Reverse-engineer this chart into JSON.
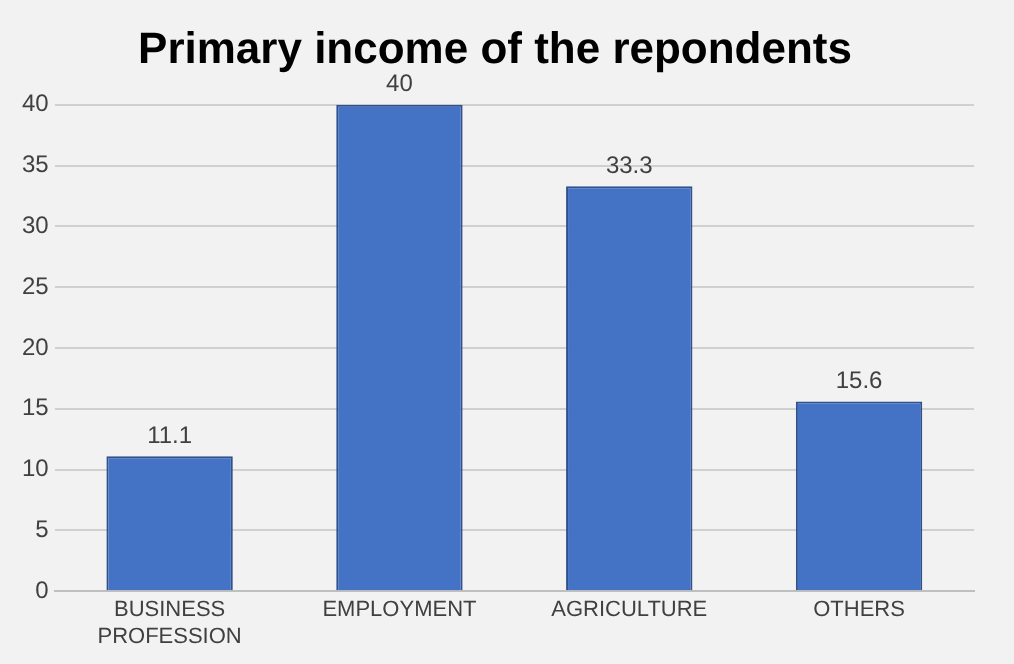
{
  "chart_data": {
    "type": "bar",
    "title": "Primary income of the repondents",
    "categories": [
      "BUSINESS PROFESSION",
      "EMPLOYMENT",
      "AGRICULTURE",
      "OTHERS"
    ],
    "values": [
      11.1,
      40,
      33.3,
      15.6
    ],
    "color": "#4472c4",
    "ylim": [
      0,
      40
    ],
    "yticks": [
      0,
      5,
      10,
      15,
      20,
      25,
      30,
      35,
      40
    ],
    "grid": "y",
    "data_labels": true
  }
}
